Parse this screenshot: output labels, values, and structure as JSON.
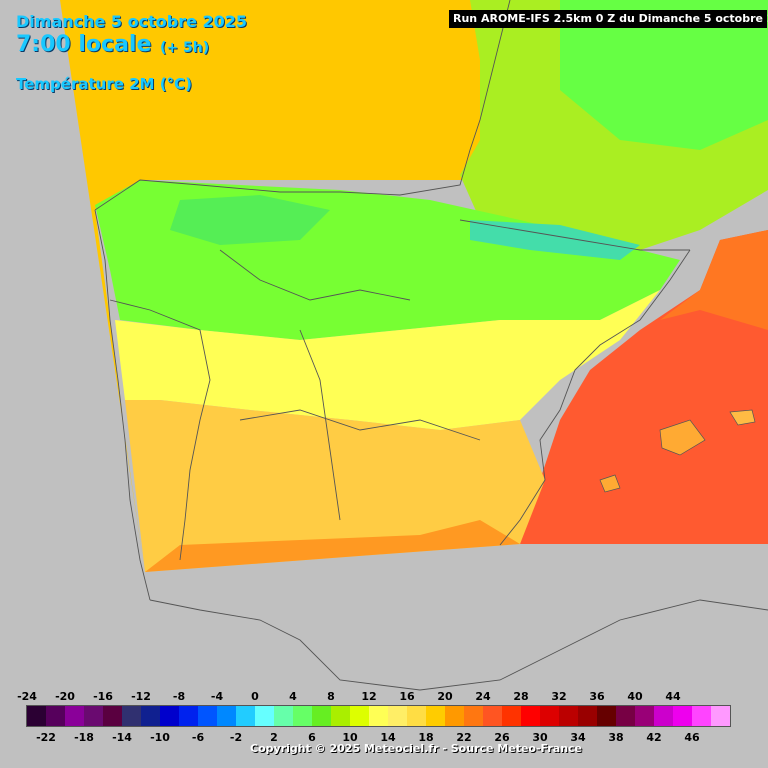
{
  "header": {
    "date": "Dimanche 5 octobre 2025",
    "time": "7:00 locale",
    "offset": "(+ 5h)",
    "parameter": "Température 2M (°C)"
  },
  "run_info": "Run AROME-IFS 2.5km 0 Z du Dimanche 5 octobre 2025",
  "legend": {
    "top_labels": [
      "-24",
      "-20",
      "-16",
      "-12",
      "-8",
      "-4",
      "0",
      "4",
      "8",
      "12",
      "16",
      "20",
      "24",
      "28",
      "32",
      "36",
      "40",
      "44"
    ],
    "bottom_labels": [
      "-22",
      "-18",
      "-14",
      "-10",
      "-6",
      "-2",
      "2",
      "6",
      "10",
      "14",
      "18",
      "22",
      "26",
      "30",
      "34",
      "38",
      "42",
      "46"
    ],
    "colors": [
      "#2b0033",
      "#56005c",
      "#8a0099",
      "#6a0a70",
      "#5a0040",
      "#303070",
      "#102090",
      "#0000cc",
      "#0022ee",
      "#0055ff",
      "#0088ff",
      "#22ccff",
      "#66ffff",
      "#66ffaa",
      "#66ff66",
      "#66ee22",
      "#aaee00",
      "#ddff00",
      "#ffff55",
      "#ffee66",
      "#ffdd44",
      "#ffcc00",
      "#ff9900",
      "#ff7711",
      "#ff5522",
      "#ff3300",
      "#ff0000",
      "#dd0000",
      "#bb0000",
      "#990000",
      "#660000",
      "#770044",
      "#990077",
      "#cc00cc",
      "#ee00ee",
      "#ff44ff",
      "#ff99ff"
    ]
  },
  "copyright": "Copyright © 2025 Meteociel.fr - Source Meteo-France",
  "map": {
    "sea_cold_color": "#ffc800",
    "sea_warm_color": "#ff5a30",
    "land_cool_color": "#66ff33",
    "land_mild_color": "#ffff44",
    "land_warm_color": "#ffcc44",
    "outside_color": "#c0c0c0",
    "border_color": "#555555"
  }
}
